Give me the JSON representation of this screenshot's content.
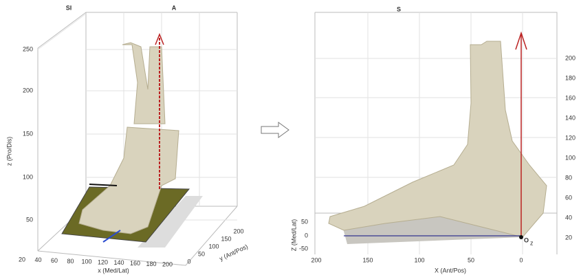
{
  "left_panel": {
    "view_labels": [
      "SI",
      "A"
    ],
    "z_axis": {
      "label": "z (Pro/Dis)",
      "ticks": [
        250,
        200,
        150,
        100,
        50
      ]
    },
    "x_axis": {
      "label": "x (Med/Lat)",
      "ticks": [
        20,
        40,
        60,
        80,
        100,
        120,
        140,
        160,
        180,
        200
      ]
    },
    "y_axis": {
      "label": "y (Ant/Pos)",
      "ticks": [
        0,
        50,
        100,
        150,
        200
      ]
    }
  },
  "right_panel": {
    "view_label": "S",
    "y_axis": {
      "ticks": [
        200,
        180,
        160,
        140,
        120,
        100,
        80,
        60,
        40,
        20
      ]
    },
    "z_axis": {
      "label": "Z (Med/Lat)",
      "ticks": [
        50,
        0,
        -50
      ]
    },
    "x_axis": {
      "label": "X (Ant/Pos)",
      "ticks": [
        200,
        150,
        100,
        50,
        0
      ]
    },
    "origin": {
      "label": "O",
      "subscript": "z"
    }
  }
}
